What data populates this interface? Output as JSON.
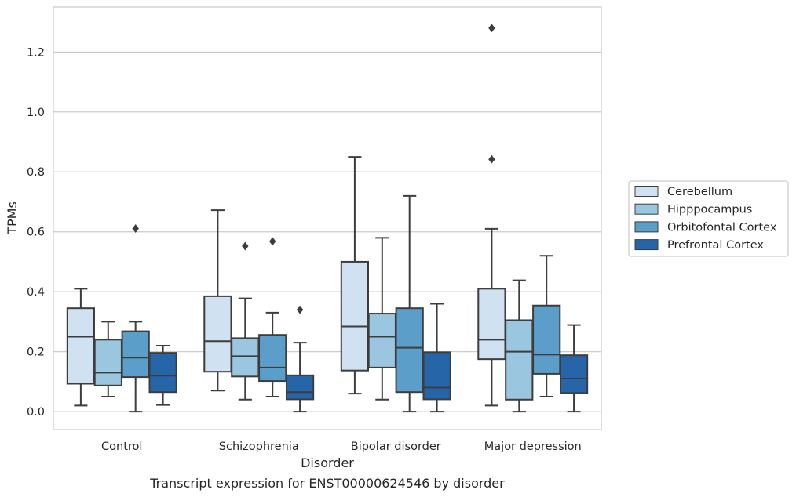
{
  "chart_data": {
    "type": "box",
    "caption": "Transcript expression for ENST00000624546 by disorder",
    "xlabel": "Disorder",
    "ylabel": "TPMs",
    "ylim": [
      -0.06,
      1.35
    ],
    "yticks": [
      0.0,
      0.2,
      0.4,
      0.6,
      0.8,
      1.0,
      1.2
    ],
    "ytick_labels": [
      "0.0",
      "0.2",
      "0.4",
      "0.6",
      "0.8",
      "1.0",
      "1.2"
    ],
    "grid": true,
    "categories": [
      "Control",
      "Schizophrenia",
      "Bipolar disorder",
      "Major depression"
    ],
    "legend_position": "right",
    "series": [
      {
        "name": "Cerebellum",
        "color": "#d0e1f1",
        "boxes": [
          {
            "whisker_low": 0.02,
            "q1": 0.093,
            "median": 0.25,
            "q3": 0.345,
            "whisker_high": 0.41,
            "outliers": []
          },
          {
            "whisker_low": 0.07,
            "q1": 0.133,
            "median": 0.235,
            "q3": 0.385,
            "whisker_high": 0.672,
            "outliers": []
          },
          {
            "whisker_low": 0.06,
            "q1": 0.137,
            "median": 0.284,
            "q3": 0.5,
            "whisker_high": 0.85,
            "outliers": []
          },
          {
            "whisker_low": 0.02,
            "q1": 0.175,
            "median": 0.24,
            "q3": 0.41,
            "whisker_high": 0.61,
            "outliers": [
              0.842,
              1.28
            ]
          }
        ]
      },
      {
        "name": "Hipppocampus",
        "color": "#9ac7df",
        "boxes": [
          {
            "whisker_low": 0.05,
            "q1": 0.087,
            "median": 0.13,
            "q3": 0.24,
            "whisker_high": 0.3,
            "outliers": []
          },
          {
            "whisker_low": 0.04,
            "q1": 0.117,
            "median": 0.185,
            "q3": 0.245,
            "whisker_high": 0.378,
            "outliers": [
              0.552
            ]
          },
          {
            "whisker_low": 0.04,
            "q1": 0.147,
            "median": 0.25,
            "q3": 0.327,
            "whisker_high": 0.58,
            "outliers": []
          },
          {
            "whisker_low": 0.0,
            "q1": 0.04,
            "median": 0.2,
            "q3": 0.305,
            "whisker_high": 0.438,
            "outliers": []
          }
        ]
      },
      {
        "name": "Orbitofontal Cortex",
        "color": "#5b9ec9",
        "boxes": [
          {
            "whisker_low": 0.0,
            "q1": 0.115,
            "median": 0.18,
            "q3": 0.268,
            "whisker_high": 0.3,
            "outliers": [
              0.611
            ]
          },
          {
            "whisker_low": 0.05,
            "q1": 0.102,
            "median": 0.147,
            "q3": 0.256,
            "whisker_high": 0.33,
            "outliers": [
              0.568
            ]
          },
          {
            "whisker_low": 0.0,
            "q1": 0.065,
            "median": 0.213,
            "q3": 0.345,
            "whisker_high": 0.72,
            "outliers": []
          },
          {
            "whisker_low": 0.05,
            "q1": 0.126,
            "median": 0.19,
            "q3": 0.354,
            "whisker_high": 0.52,
            "outliers": []
          }
        ]
      },
      {
        "name": "Prefrontal Cortex",
        "color": "#2565a8",
        "boxes": [
          {
            "whisker_low": 0.022,
            "q1": 0.065,
            "median": 0.12,
            "q3": 0.196,
            "whisker_high": 0.22,
            "outliers": []
          },
          {
            "whisker_low": 0.0,
            "q1": 0.041,
            "median": 0.065,
            "q3": 0.121,
            "whisker_high": 0.23,
            "outliers": [
              0.34
            ]
          },
          {
            "whisker_low": 0.0,
            "q1": 0.041,
            "median": 0.08,
            "q3": 0.198,
            "whisker_high": 0.36,
            "outliers": []
          },
          {
            "whisker_low": 0.0,
            "q1": 0.062,
            "median": 0.11,
            "q3": 0.188,
            "whisker_high": 0.289,
            "outliers": []
          }
        ]
      }
    ]
  }
}
